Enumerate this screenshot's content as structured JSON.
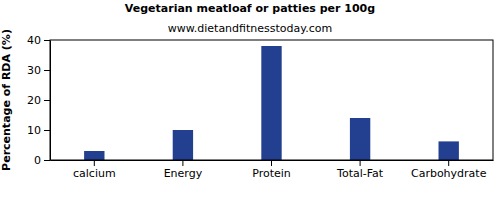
{
  "chart_data": {
    "type": "bar",
    "title": "Vegetarian meatloaf or patties per 100g",
    "subtitle": "www.dietandfitnesstoday.com",
    "y_label": "Percentage of RDA (%)",
    "categories": [
      "calcium",
      "Energy",
      "Protein",
      "Total-Fat",
      "Carbohydrate"
    ],
    "values": [
      3,
      10,
      38,
      14,
      6.2
    ],
    "color": "#233f8f",
    "ylim": [
      0,
      40
    ],
    "yticks": [
      0,
      10,
      20,
      30,
      40
    ],
    "grid": false
  }
}
